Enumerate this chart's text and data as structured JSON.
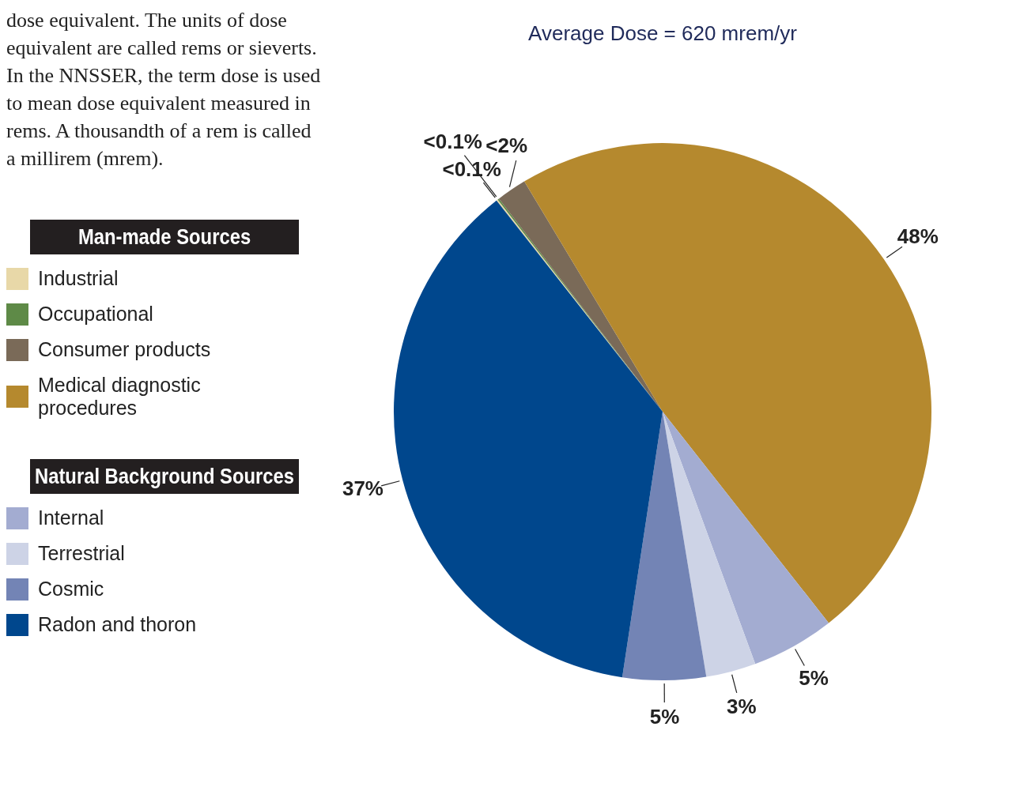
{
  "chart_data": {
    "type": "pie",
    "title": "Average Dose = 620 mrem/yr",
    "categories": [
      "Industrial",
      "Occupational",
      "Consumer products",
      "Medical diagnostic procedures",
      "Internal",
      "Terrestrial",
      "Cosmic",
      "Radon and thoron"
    ],
    "values": [
      0.09,
      0.09,
      1.82,
      48,
      5,
      3,
      5,
      37
    ],
    "colors": [
      "#e8d8a8",
      "#5e8a47",
      "#7a6a58",
      "#b5892e",
      "#a3acd1",
      "#cdd3e6",
      "#7384b5",
      "#00478d"
    ],
    "value_labels": [
      "<0.1%",
      "<0.1%",
      "<2%",
      "48%",
      "5%",
      "3%",
      "5%",
      "37%"
    ],
    "legend": "left",
    "annotations": [
      "dose equivalent. The units of dose equivalent are called rems or sieverts. In the NNSSER, the term dose is used to mean dose equivalent measured in rems. A thousandth of a rem is called a millirem (mrem).",
      "Man-made Sources",
      "Natural Background Sources"
    ]
  }
}
